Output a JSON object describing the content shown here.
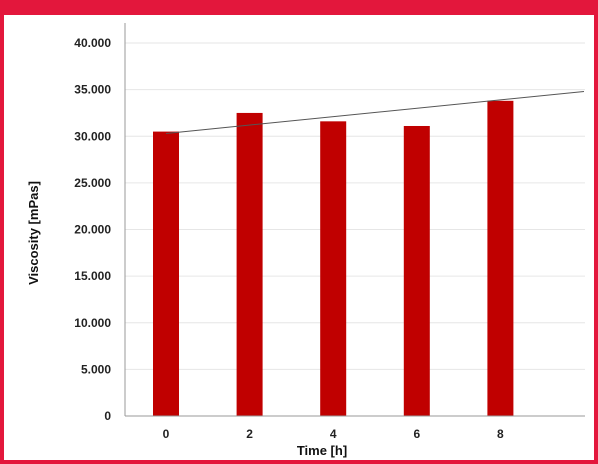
{
  "chart_data": {
    "type": "bar",
    "categories": [
      "0",
      "2",
      "4",
      "6",
      "8"
    ],
    "values": [
      30500,
      32500,
      31600,
      31100,
      33800
    ],
    "trendline": {
      "type": "linear",
      "from": {
        "x": 0,
        "y": 30300
      },
      "to": {
        "x": 10,
        "y": 34800
      }
    },
    "xlabel": "Time [h]",
    "ylabel": "Viscosity [mPas]",
    "ylim": [
      0,
      40000
    ],
    "yticks": [
      "0",
      "5.000",
      "10.000",
      "15.000",
      "20.000",
      "25.000",
      "30.000",
      "35.000",
      "40.000"
    ],
    "grid": true,
    "legend": "none",
    "colors": {
      "bar": "#c00000",
      "trendline": "#555555",
      "gridline": "#e6e6e6",
      "frame": "#e3173c"
    }
  }
}
